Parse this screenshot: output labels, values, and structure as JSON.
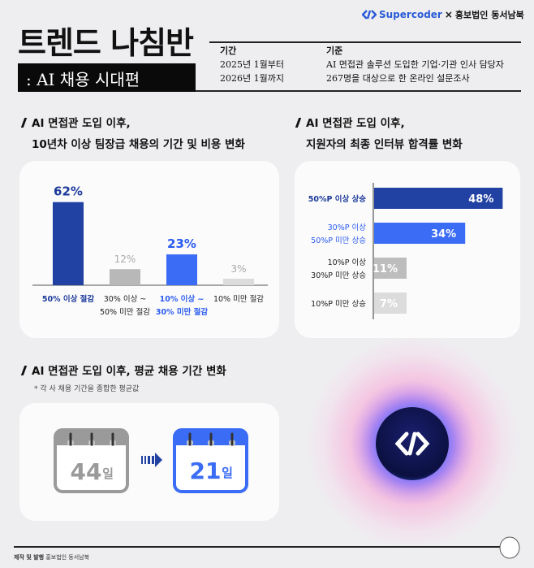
{
  "header": {
    "brand": "Supercoder",
    "times": "×",
    "partner": "홍보법인 동서남북",
    "title": "트렌드 나침반",
    "subtitle": ": AI 채용 시대편",
    "period_label": "기간",
    "period_lines": [
      "2025년 1월부터",
      "2026년 1월까지"
    ],
    "basis_label": "기준",
    "basis_lines": [
      "AI 면접관 솔루션 도입한 기업·기관 인사 담당자",
      "267명을 대상으로 한 온라인 설문조사"
    ]
  },
  "sections": {
    "left_title": [
      "AI 면접관 도입 이후,",
      "10년차 이상 팀장급 채용의 기간 및 비용 변화"
    ],
    "right_title": [
      "AI 면접관 도입 이후,",
      "지원자의 최종 인터뷰 합격률 변화"
    ],
    "bottom_title": "AI 면접관 도입 이후, 평균 채용 기간 변화",
    "bottom_note": "* 각 사 채용 기간을 종합한 평균값"
  },
  "chart_data": [
    {
      "type": "bar",
      "orientation": "vertical",
      "categories": [
        [
          "50% 이상 절감"
        ],
        [
          "30% 이상 ~",
          "50% 미만 절감"
        ],
        [
          "10% 이상 ~",
          "30% 미만 절감"
        ],
        [
          "10% 미만 절감"
        ]
      ],
      "values": [
        62,
        12,
        23,
        3
      ],
      "labels": [
        "62%",
        "12%",
        "23%",
        "3%"
      ],
      "colors": [
        "#2141a3",
        "#b8b8b8",
        "#3b6cf6",
        "#dcdcdc"
      ],
      "label_colors": [
        "#1c3a99",
        "#aaaaaa",
        "#2a5bf0",
        "#aaaaaa"
      ],
      "ylim": [
        0,
        70
      ]
    },
    {
      "type": "bar",
      "orientation": "horizontal",
      "categories": [
        [
          "50%P 이상 상승"
        ],
        [
          "30%P 이상",
          "50%P 미만 상승"
        ],
        [
          "10%P 이상",
          "30%P 미만 상승"
        ],
        [
          "10%P 미만 상승"
        ]
      ],
      "values": [
        48,
        34,
        11,
        7
      ],
      "labels": [
        "48%",
        "34%",
        "11%",
        "7%"
      ],
      "colors": [
        "#2141a3",
        "#3b6cf6",
        "#bdbdbd",
        "#dcdcdc"
      ],
      "label_colors": [
        "#1c3a99",
        "#2a5bf0",
        "#222222",
        "#222222"
      ],
      "xlim": [
        0,
        50
      ]
    }
  ],
  "duration": {
    "before": "44",
    "after": "21",
    "unit": "일",
    "before_color": "#9a9a9a",
    "after_color": "#3b6cf6"
  },
  "footer": {
    "label": "제작 및 발행",
    "publisher": "홍보법인 동서남북"
  }
}
